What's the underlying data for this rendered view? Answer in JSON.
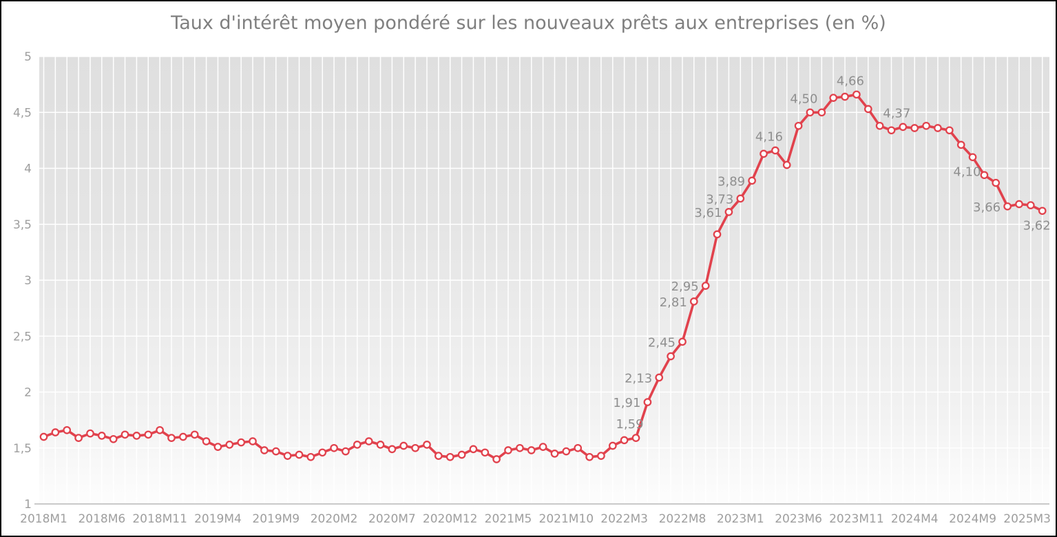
{
  "chart_data": {
    "type": "line",
    "title": "Taux d'intérêt moyen pondéré sur les nouveaux prêts aux entreprises (en %)",
    "xlabel": "",
    "ylabel": "",
    "ylim": [
      1,
      5
    ],
    "grid": {
      "vertical": "monthly",
      "horizontal_step": 0.5,
      "color": "#ffffff"
    },
    "legend": "none",
    "decimal_separator": ",",
    "y_ticks": [
      {
        "value": 1,
        "label": "1"
      },
      {
        "value": 1.5,
        "label": "1,5"
      },
      {
        "value": 2,
        "label": "2"
      },
      {
        "value": 2.5,
        "label": "2,5"
      },
      {
        "value": 3,
        "label": "3"
      },
      {
        "value": 3.5,
        "label": "3,5"
      },
      {
        "value": 4,
        "label": "4"
      },
      {
        "value": 4.5,
        "label": "4,5"
      },
      {
        "value": 5,
        "label": "5"
      }
    ],
    "x_ticks": [
      {
        "month_index": 0,
        "label": "2018M1"
      },
      {
        "month_index": 5,
        "label": "2018M6"
      },
      {
        "month_index": 10,
        "label": "2018M11"
      },
      {
        "month_index": 15,
        "label": "2019M4"
      },
      {
        "month_index": 20,
        "label": "2019M9"
      },
      {
        "month_index": 25,
        "label": "2020M2"
      },
      {
        "month_index": 30,
        "label": "2020M7"
      },
      {
        "month_index": 35,
        "label": "2020M12"
      },
      {
        "month_index": 40,
        "label": "2021M5"
      },
      {
        "month_index": 45,
        "label": "2021M10"
      },
      {
        "month_index": 50,
        "label": "2022M3"
      },
      {
        "month_index": 55,
        "label": "2022M8"
      },
      {
        "month_index": 60,
        "label": "2023M1"
      },
      {
        "month_index": 65,
        "label": "2023M6"
      },
      {
        "month_index": 70,
        "label": "2023M11"
      },
      {
        "month_index": 75,
        "label": "2024M4"
      },
      {
        "month_index": 80,
        "label": "2024M9"
      },
      {
        "month_index": 86,
        "label": "2025M3"
      }
    ],
    "months": [
      "2018M1",
      "2018M2",
      "2018M3",
      "2018M4",
      "2018M5",
      "2018M6",
      "2018M7",
      "2018M8",
      "2018M9",
      "2018M10",
      "2018M11",
      "2018M12",
      "2019M1",
      "2019M2",
      "2019M3",
      "2019M4",
      "2019M5",
      "2019M6",
      "2019M7",
      "2019M8",
      "2019M9",
      "2019M10",
      "2019M11",
      "2019M12",
      "2020M1",
      "2020M2",
      "2020M3",
      "2020M4",
      "2020M5",
      "2020M6",
      "2020M7",
      "2020M8",
      "2020M9",
      "2020M10",
      "2020M11",
      "2020M12",
      "2021M1",
      "2021M2",
      "2021M3",
      "2021M4",
      "2021M5",
      "2021M6",
      "2021M7",
      "2021M8",
      "2021M9",
      "2021M10",
      "2021M11",
      "2021M12",
      "2022M1",
      "2022M2",
      "2022M3",
      "2022M4",
      "2022M5",
      "2022M6",
      "2022M7",
      "2022M8",
      "2022M9",
      "2022M10",
      "2022M11",
      "2022M12",
      "2023M1",
      "2023M2",
      "2023M3",
      "2023M4",
      "2023M5",
      "2023M6",
      "2023M7",
      "2023M8",
      "2023M9",
      "2023M10",
      "2023M11",
      "2023M12",
      "2024M1",
      "2024M2",
      "2024M3",
      "2024M4",
      "2024M5",
      "2024M6",
      "2024M7",
      "2024M8",
      "2024M9",
      "2024M10",
      "2024M11",
      "2024M12",
      "2025M1",
      "2025M2",
      "2025M3"
    ],
    "values": [
      1.6,
      1.64,
      1.66,
      1.59,
      1.63,
      1.61,
      1.58,
      1.62,
      1.61,
      1.62,
      1.66,
      1.59,
      1.6,
      1.62,
      1.56,
      1.51,
      1.53,
      1.55,
      1.56,
      1.48,
      1.47,
      1.43,
      1.44,
      1.42,
      1.46,
      1.5,
      1.47,
      1.53,
      1.56,
      1.53,
      1.49,
      1.52,
      1.5,
      1.53,
      1.43,
      1.42,
      1.44,
      1.49,
      1.46,
      1.4,
      1.48,
      1.5,
      1.48,
      1.51,
      1.45,
      1.47,
      1.5,
      1.42,
      1.43,
      1.52,
      1.57,
      1.59,
      1.91,
      2.13,
      2.32,
      2.45,
      2.81,
      2.95,
      3.41,
      3.61,
      3.73,
      3.89,
      4.13,
      4.16,
      4.03,
      4.38,
      4.5,
      4.5,
      4.63,
      4.64,
      4.66,
      4.53,
      4.38,
      4.34,
      4.37,
      4.36,
      4.38,
      4.36,
      4.34,
      4.21,
      4.1,
      3.94,
      3.87,
      3.66,
      3.68,
      3.67,
      3.62
    ],
    "point_labels": [
      {
        "month": "2022M4",
        "month_index": 51,
        "value": 1.59,
        "text": "1,59",
        "placement": "above"
      },
      {
        "month": "2022M5",
        "month_index": 52,
        "value": 1.91,
        "text": "1,91",
        "placement": "left"
      },
      {
        "month": "2022M6",
        "month_index": 53,
        "value": 2.13,
        "text": "2,13",
        "placement": "left"
      },
      {
        "month": "2022M8",
        "month_index": 55,
        "value": 2.45,
        "text": "2,45",
        "placement": "left"
      },
      {
        "month": "2022M9",
        "month_index": 56,
        "value": 2.81,
        "text": "2,81",
        "placement": "left"
      },
      {
        "month": "2022M10",
        "month_index": 57,
        "value": 2.95,
        "text": "2,95",
        "placement": "left"
      },
      {
        "month": "2022M12",
        "month_index": 59,
        "value": 3.61,
        "text": "3,61",
        "placement": "left"
      },
      {
        "month": "2023M1",
        "month_index": 60,
        "value": 3.73,
        "text": "3,73",
        "placement": "left"
      },
      {
        "month": "2023M2",
        "month_index": 61,
        "value": 3.89,
        "text": "3,89",
        "placement": "left"
      },
      {
        "month": "2023M4",
        "month_index": 63,
        "value": 4.16,
        "text": "4,16",
        "placement": "above"
      },
      {
        "month": "2023M7",
        "month_index": 66,
        "value": 4.5,
        "text": "4,50",
        "placement": "above"
      },
      {
        "month": "2023M11",
        "month_index": 70,
        "value": 4.66,
        "text": "4,66",
        "placement": "above"
      },
      {
        "month": "2024M3",
        "month_index": 74,
        "value": 4.37,
        "text": "4,37",
        "placement": "above"
      },
      {
        "month": "2024M9",
        "month_index": 80,
        "value": 4.1,
        "text": "4,10",
        "placement": "below"
      },
      {
        "month": "2024M12",
        "month_index": 83,
        "value": 3.66,
        "text": "3,66",
        "placement": "left"
      },
      {
        "month": "2025M3",
        "month_index": 86,
        "value": 3.62,
        "text": "3,62",
        "placement": "below"
      }
    ],
    "colors": {
      "line": "#e1424d",
      "marker_fill": "#ffffff",
      "point_label": "#8f8f8f",
      "tick_label": "#9e9e9e",
      "title": "#7f7f7f",
      "axis_line": "#b8b8b8",
      "plot_bg_top": "#dfdfdf",
      "plot_bg_mid": "#e4e4e4",
      "plot_bg_low": "#f2f2f2",
      "plot_bg_bottom": "#fdfdfd",
      "gridline": "#ffffff"
    }
  }
}
